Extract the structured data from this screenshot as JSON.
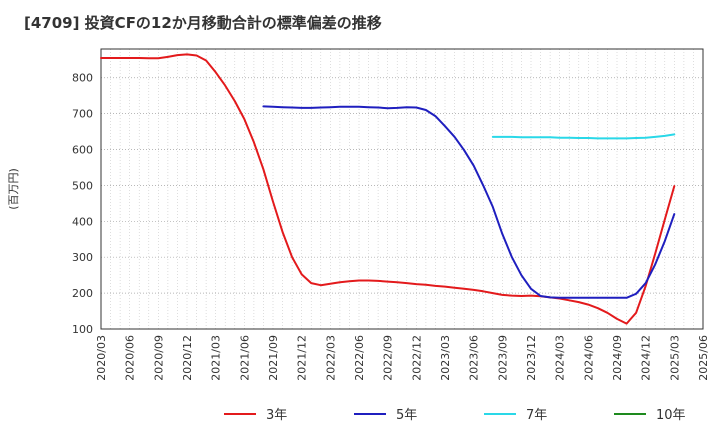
{
  "title": "[4709]  投資CFの12か月移動合計の標準偏差の推移",
  "chart_data": {
    "type": "line",
    "title": "[4709]  投資CFの12か月移動合計の標準偏差の推移",
    "ylabel": "(百万円)",
    "xlabel": "",
    "ylim": [
      100,
      880
    ],
    "yticks": [
      100,
      200,
      300,
      400,
      500,
      600,
      700,
      800
    ],
    "xticks": [
      "2020/03",
      "2020/06",
      "2020/09",
      "2020/12",
      "2021/03",
      "2021/06",
      "2021/09",
      "2021/12",
      "2022/03",
      "2022/06",
      "2022/09",
      "2022/12",
      "2023/03",
      "2023/06",
      "2023/09",
      "2023/12",
      "2024/03",
      "2024/06",
      "2024/09",
      "2024/12",
      "2025/03",
      "2025/06"
    ],
    "grid": true,
    "legend_position": "bottom",
    "series": [
      {
        "name": "3年",
        "color": "#e31a1c",
        "points": [
          [
            "2020/03",
            855
          ],
          [
            "2020/04",
            855
          ],
          [
            "2020/05",
            855
          ],
          [
            "2020/06",
            855
          ],
          [
            "2020/07",
            855
          ],
          [
            "2020/08",
            854
          ],
          [
            "2020/09",
            854
          ],
          [
            "2020/10",
            858
          ],
          [
            "2020/11",
            863
          ],
          [
            "2020/12",
            865
          ],
          [
            "2021/01",
            862
          ],
          [
            "2021/02",
            848
          ],
          [
            "2021/03",
            815
          ],
          [
            "2021/04",
            778
          ],
          [
            "2021/05",
            735
          ],
          [
            "2021/06",
            685
          ],
          [
            "2021/07",
            620
          ],
          [
            "2021/08",
            545
          ],
          [
            "2021/09",
            455
          ],
          [
            "2021/10",
            370
          ],
          [
            "2021/11",
            300
          ],
          [
            "2021/12",
            252
          ],
          [
            "2022/01",
            228
          ],
          [
            "2022/02",
            222
          ],
          [
            "2022/03",
            226
          ],
          [
            "2022/04",
            230
          ],
          [
            "2022/05",
            233
          ],
          [
            "2022/06",
            235
          ],
          [
            "2022/07",
            235
          ],
          [
            "2022/08",
            234
          ],
          [
            "2022/09",
            232
          ],
          [
            "2022/10",
            230
          ],
          [
            "2022/11",
            228
          ],
          [
            "2022/12",
            225
          ],
          [
            "2023/01",
            223
          ],
          [
            "2023/02",
            220
          ],
          [
            "2023/03",
            218
          ],
          [
            "2023/04",
            215
          ],
          [
            "2023/05",
            212
          ],
          [
            "2023/06",
            209
          ],
          [
            "2023/07",
            205
          ],
          [
            "2023/08",
            200
          ],
          [
            "2023/09",
            195
          ],
          [
            "2023/10",
            193
          ],
          [
            "2023/11",
            192
          ],
          [
            "2023/12",
            193
          ],
          [
            "2024/01",
            191
          ],
          [
            "2024/02",
            188
          ],
          [
            "2024/03",
            185
          ],
          [
            "2024/04",
            180
          ],
          [
            "2024/05",
            175
          ],
          [
            "2024/06",
            168
          ],
          [
            "2024/07",
            158
          ],
          [
            "2024/08",
            145
          ],
          [
            "2024/09",
            128
          ],
          [
            "2024/10",
            115
          ],
          [
            "2024/11",
            145
          ],
          [
            "2024/12",
            220
          ],
          [
            "2025/01",
            310
          ],
          [
            "2025/02",
            405
          ],
          [
            "2025/03",
            498
          ]
        ]
      },
      {
        "name": "5年",
        "color": "#1f1fbf",
        "points": [
          [
            "2021/08",
            720
          ],
          [
            "2021/09",
            719
          ],
          [
            "2021/10",
            718
          ],
          [
            "2021/11",
            717
          ],
          [
            "2021/12",
            716
          ],
          [
            "2022/01",
            716
          ],
          [
            "2022/02",
            717
          ],
          [
            "2022/03",
            718
          ],
          [
            "2022/04",
            719
          ],
          [
            "2022/05",
            719
          ],
          [
            "2022/06",
            719
          ],
          [
            "2022/07",
            718
          ],
          [
            "2022/08",
            717
          ],
          [
            "2022/09",
            715
          ],
          [
            "2022/10",
            716
          ],
          [
            "2022/11",
            718
          ],
          [
            "2022/12",
            717
          ],
          [
            "2023/01",
            710
          ],
          [
            "2023/02",
            693
          ],
          [
            "2023/03",
            665
          ],
          [
            "2023/04",
            635
          ],
          [
            "2023/05",
            598
          ],
          [
            "2023/06",
            555
          ],
          [
            "2023/07",
            500
          ],
          [
            "2023/08",
            440
          ],
          [
            "2023/09",
            365
          ],
          [
            "2023/10",
            300
          ],
          [
            "2023/11",
            250
          ],
          [
            "2023/12",
            212
          ],
          [
            "2024/01",
            192
          ],
          [
            "2024/02",
            188
          ],
          [
            "2024/03",
            187
          ],
          [
            "2024/04",
            187
          ],
          [
            "2024/05",
            187
          ],
          [
            "2024/06",
            187
          ],
          [
            "2024/07",
            187
          ],
          [
            "2024/08",
            187
          ],
          [
            "2024/09",
            187
          ],
          [
            "2024/10",
            187
          ],
          [
            "2024/11",
            198
          ],
          [
            "2024/12",
            228
          ],
          [
            "2025/01",
            280
          ],
          [
            "2025/02",
            345
          ],
          [
            "2025/03",
            420
          ]
        ]
      },
      {
        "name": "7年",
        "color": "#2ad8e8",
        "points": [
          [
            "2023/08",
            635
          ],
          [
            "2023/09",
            635
          ],
          [
            "2023/10",
            635
          ],
          [
            "2023/11",
            634
          ],
          [
            "2023/12",
            634
          ],
          [
            "2024/01",
            634
          ],
          [
            "2024/02",
            634
          ],
          [
            "2024/03",
            633
          ],
          [
            "2024/04",
            633
          ],
          [
            "2024/05",
            632
          ],
          [
            "2024/06",
            632
          ],
          [
            "2024/07",
            631
          ],
          [
            "2024/08",
            631
          ],
          [
            "2024/09",
            631
          ],
          [
            "2024/10",
            631
          ],
          [
            "2024/11",
            632
          ],
          [
            "2024/12",
            633
          ],
          [
            "2025/01",
            635
          ],
          [
            "2025/02",
            638
          ],
          [
            "2025/03",
            642
          ]
        ]
      },
      {
        "name": "10年",
        "color": "#1e8a1e",
        "points": []
      }
    ]
  }
}
